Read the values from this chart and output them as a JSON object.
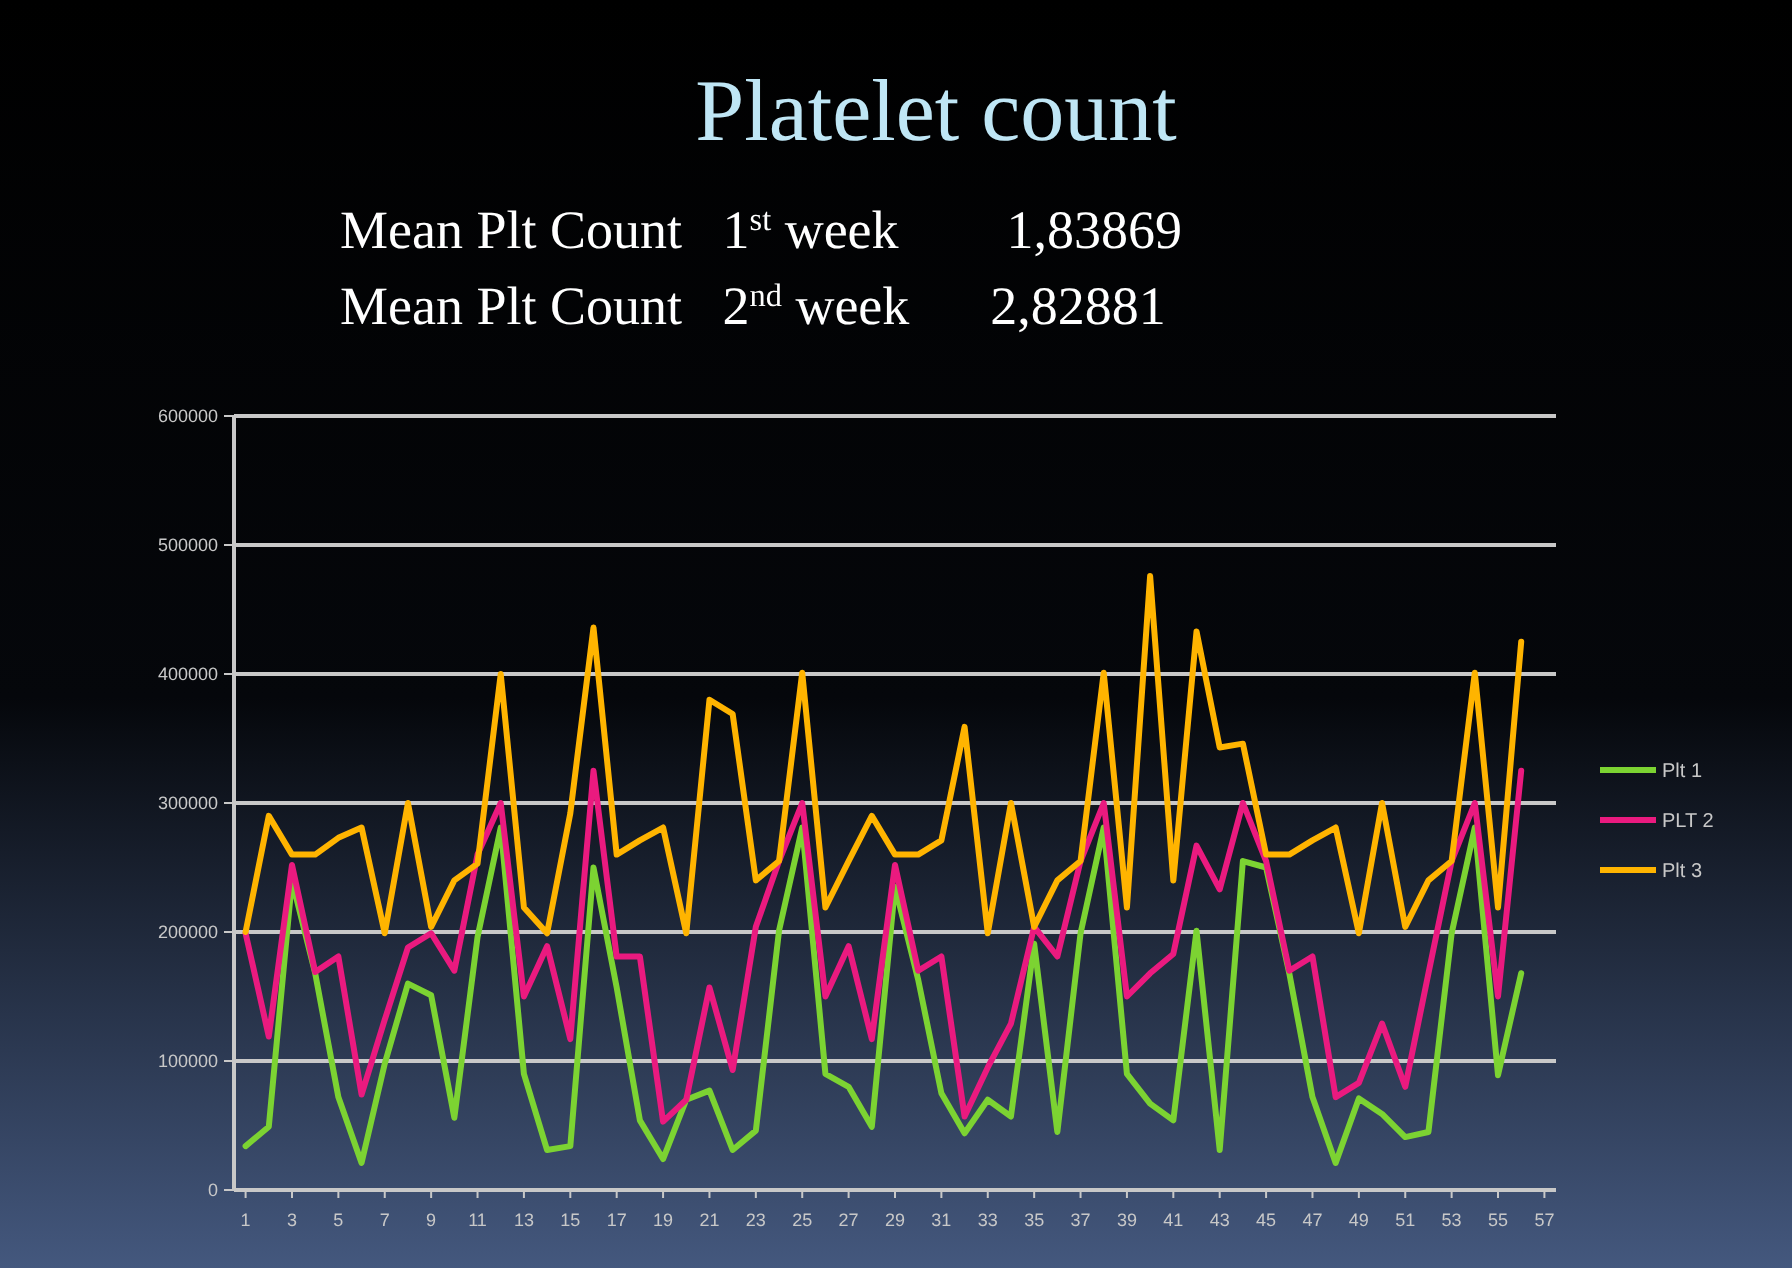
{
  "chart_data": {
    "type": "line",
    "title": "Platelet count",
    "annotations": [
      "Mean Plt Count   1$^{st}$ week        1,83869",
      "Mean Plt Count   2$^{nd}$ week      2,82881"
    ],
    "x": [
      1,
      2,
      3,
      4,
      5,
      6,
      7,
      8,
      9,
      10,
      11,
      12,
      13,
      14,
      15,
      16,
      17,
      18,
      19,
      20,
      21,
      22,
      23,
      24,
      25,
      26,
      27,
      28,
      29,
      30,
      31,
      32,
      33,
      34,
      35,
      36,
      37,
      38,
      39,
      40,
      41,
      42,
      43,
      44,
      45,
      46,
      47,
      48,
      49,
      50,
      51,
      52,
      53,
      54,
      55,
      56
    ],
    "xlim": [
      0.5,
      57.5
    ],
    "xticks": [
      1,
      3,
      5,
      7,
      9,
      11,
      13,
      15,
      17,
      19,
      21,
      23,
      25,
      27,
      29,
      31,
      33,
      35,
      37,
      39,
      41,
      43,
      45,
      47,
      49,
      51,
      53,
      55,
      57
    ],
    "ylim": [
      0,
      600000
    ],
    "yticks": [
      0,
      100000,
      200000,
      300000,
      400000,
      500000,
      600000
    ],
    "grid": "y",
    "legend": "right",
    "marker": "none",
    "line_style": "solid",
    "series": [
      {
        "name": "Plt 1",
        "color": "#7cd332",
        "values": [
          34000,
          49000,
          240000,
          168000,
          72000,
          21000,
          98000,
          160000,
          151000,
          56000,
          196000,
          281000,
          90000,
          31000,
          34000,
          250000,
          157000,
          54000,
          24000,
          70000,
          77000,
          31000,
          46000,
          201000,
          281000,
          90000,
          80000,
          49000,
          235000,
          163000,
          75000,
          44000,
          70000,
          57000,
          191000,
          45000,
          199000,
          281000,
          90000,
          67000,
          54000,
          201000,
          31000,
          255000,
          250000,
          168000,
          72000,
          21000,
          71000,
          59000,
          41000,
          45000,
          199000,
          281000,
          89000,
          168000
        ]
      },
      {
        "name": "PLT 2",
        "color": "#ea1a7f",
        "values": [
          199000,
          119000,
          252000,
          169000,
          181000,
          74000,
          132000,
          188000,
          199000,
          170000,
          260000,
          300000,
          150000,
          189000,
          117000,
          325000,
          181000,
          181000,
          53000,
          70000,
          157000,
          93000,
          204000,
          255000,
          300000,
          150000,
          189000,
          117000,
          252000,
          170000,
          181000,
          57000,
          95000,
          129000,
          204000,
          181000,
          255000,
          300000,
          150000,
          168000,
          183000,
          267000,
          233000,
          300000,
          255000,
          170000,
          181000,
          72000,
          83000,
          129000,
          80000,
          168000,
          255000,
          300000,
          150000,
          325000
        ]
      },
      {
        "name": "Plt 3",
        "color": "#ffb400",
        "values": [
          200000,
          290000,
          260000,
          260000,
          273000,
          281000,
          199000,
          300000,
          204000,
          240000,
          253000,
          400000,
          219000,
          199000,
          292000,
          436000,
          260000,
          271000,
          281000,
          199000,
          380000,
          369000,
          240000,
          255000,
          401000,
          219000,
          255000,
          290000,
          260000,
          260000,
          271000,
          359000,
          199000,
          300000,
          204000,
          240000,
          255000,
          401000,
          219000,
          476000,
          240000,
          433000,
          343000,
          346000,
          260000,
          260000,
          271000,
          281000,
          199000,
          300000,
          204000,
          240000,
          255000,
          401000,
          219000,
          425000
        ]
      }
    ]
  }
}
